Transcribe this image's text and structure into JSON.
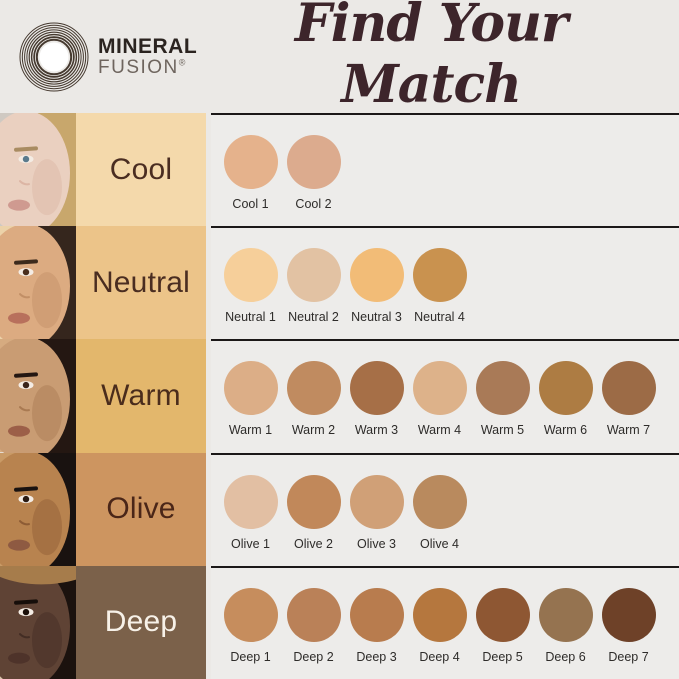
{
  "header": {
    "logo": {
      "line1": "MINERAL",
      "line2": "FUSION",
      "reg": "®",
      "ring_color": "#45392f"
    },
    "title": "Find Your Match",
    "title_color": "#3d252b"
  },
  "panel": {
    "bg": "#edecea",
    "rule_color": "#1b1818",
    "label_color": "#2e2c2a"
  },
  "page_bg": "#ebe9e6",
  "rows": [
    {
      "name": "Cool",
      "block_bg": "#f4d9ab",
      "text_color": "#4a2d21",
      "face_alt": "fair-skin-blonde-model",
      "face": {
        "bg": "#cfc9c2",
        "skin": "#ead0c0",
        "shade": "#dcb5a4",
        "hair": "#c8a76c",
        "eye": "#5a7a8c",
        "brow": "#a98c62",
        "lip": "#cf9a90",
        "hat": null
      },
      "swatches": [
        {
          "label": "Cool 1",
          "color": "#e5b28c"
        },
        {
          "label": "Cool 2",
          "color": "#dcab8e"
        }
      ]
    },
    {
      "name": "Neutral",
      "block_bg": "#ecc489",
      "text_color": "#4a2d21",
      "face_alt": "light-medium-skin-brunette-model",
      "face": {
        "bg": "#ecd2a9",
        "skin": "#dcab81",
        "shade": "#c28f66",
        "hair": "#35261d",
        "eye": "#4a2e1d",
        "brow": "#3c2a1c",
        "lip": "#b8705c",
        "hat": null
      },
      "swatches": [
        {
          "label": "Neutral 1",
          "color": "#f6cf9a"
        },
        {
          "label": "Neutral 2",
          "color": "#e2c2a3"
        },
        {
          "label": "Neutral 3",
          "color": "#f2bc77"
        },
        {
          "label": "Neutral 4",
          "color": "#c9924f"
        }
      ]
    },
    {
      "name": "Warm",
      "block_bg": "#e3b76c",
      "text_color": "#4a2c1c",
      "face_alt": "medium-tan-skin-model",
      "face": {
        "bg": "#d6ab80",
        "skin": "#c99c73",
        "shade": "#a97a52",
        "hair": "#241712",
        "eye": "#3a241a",
        "brow": "#241712",
        "lip": "#9c5f48",
        "hat": null
      },
      "swatches": [
        {
          "label": "Warm 1",
          "color": "#dcae87"
        },
        {
          "label": "Warm 2",
          "color": "#c08b60"
        },
        {
          "label": "Warm 3",
          "color": "#a66f47"
        },
        {
          "label": "Warm 4",
          "color": "#ddb28a"
        },
        {
          "label": "Warm 5",
          "color": "#a97a57"
        },
        {
          "label": "Warm 6",
          "color": "#ad7c43"
        },
        {
          "label": "Warm 7",
          "color": "#9c6b46"
        }
      ]
    },
    {
      "name": "Olive",
      "block_bg": "#cd9560",
      "text_color": "#4a2618",
      "face_alt": "olive-tan-skin-model",
      "face": {
        "bg": "#c99a66",
        "skin": "#b8834f",
        "shade": "#8d5c35",
        "hair": "#191210",
        "eye": "#2a1a12",
        "brow": "#191210",
        "lip": "#8e5a42",
        "hat": null
      },
      "swatches": [
        {
          "label": "Olive 1",
          "color": "#e2bfa3"
        },
        {
          "label": "Olive 2",
          "color": "#c1885a"
        },
        {
          "label": "Olive 3",
          "color": "#d0a077"
        },
        {
          "label": "Olive 4",
          "color": "#b98a5e"
        }
      ]
    },
    {
      "name": "Deep",
      "block_bg": "#7b614a",
      "text_color": "#f7f1e8",
      "face_alt": "deep-skin-model-with-hat",
      "face": {
        "bg": "#d8c3a9",
        "skin": "#5f4335",
        "shade": "#432d24",
        "hair": "#1b120e",
        "eye": "#1c100a",
        "brow": "#160e0a",
        "lip": "#4e332a",
        "hat": "#a67c4b"
      },
      "swatches": [
        {
          "label": "Deep 1",
          "color": "#c68d5d"
        },
        {
          "label": "Deep 2",
          "color": "#ba8158"
        },
        {
          "label": "Deep 3",
          "color": "#b87c4e"
        },
        {
          "label": "Deep 4",
          "color": "#b5773e"
        },
        {
          "label": "Deep 5",
          "color": "#8e5733"
        },
        {
          "label": "Deep 6",
          "color": "#957350"
        },
        {
          "label": "Deep 7",
          "color": "#6e4128"
        }
      ]
    }
  ]
}
